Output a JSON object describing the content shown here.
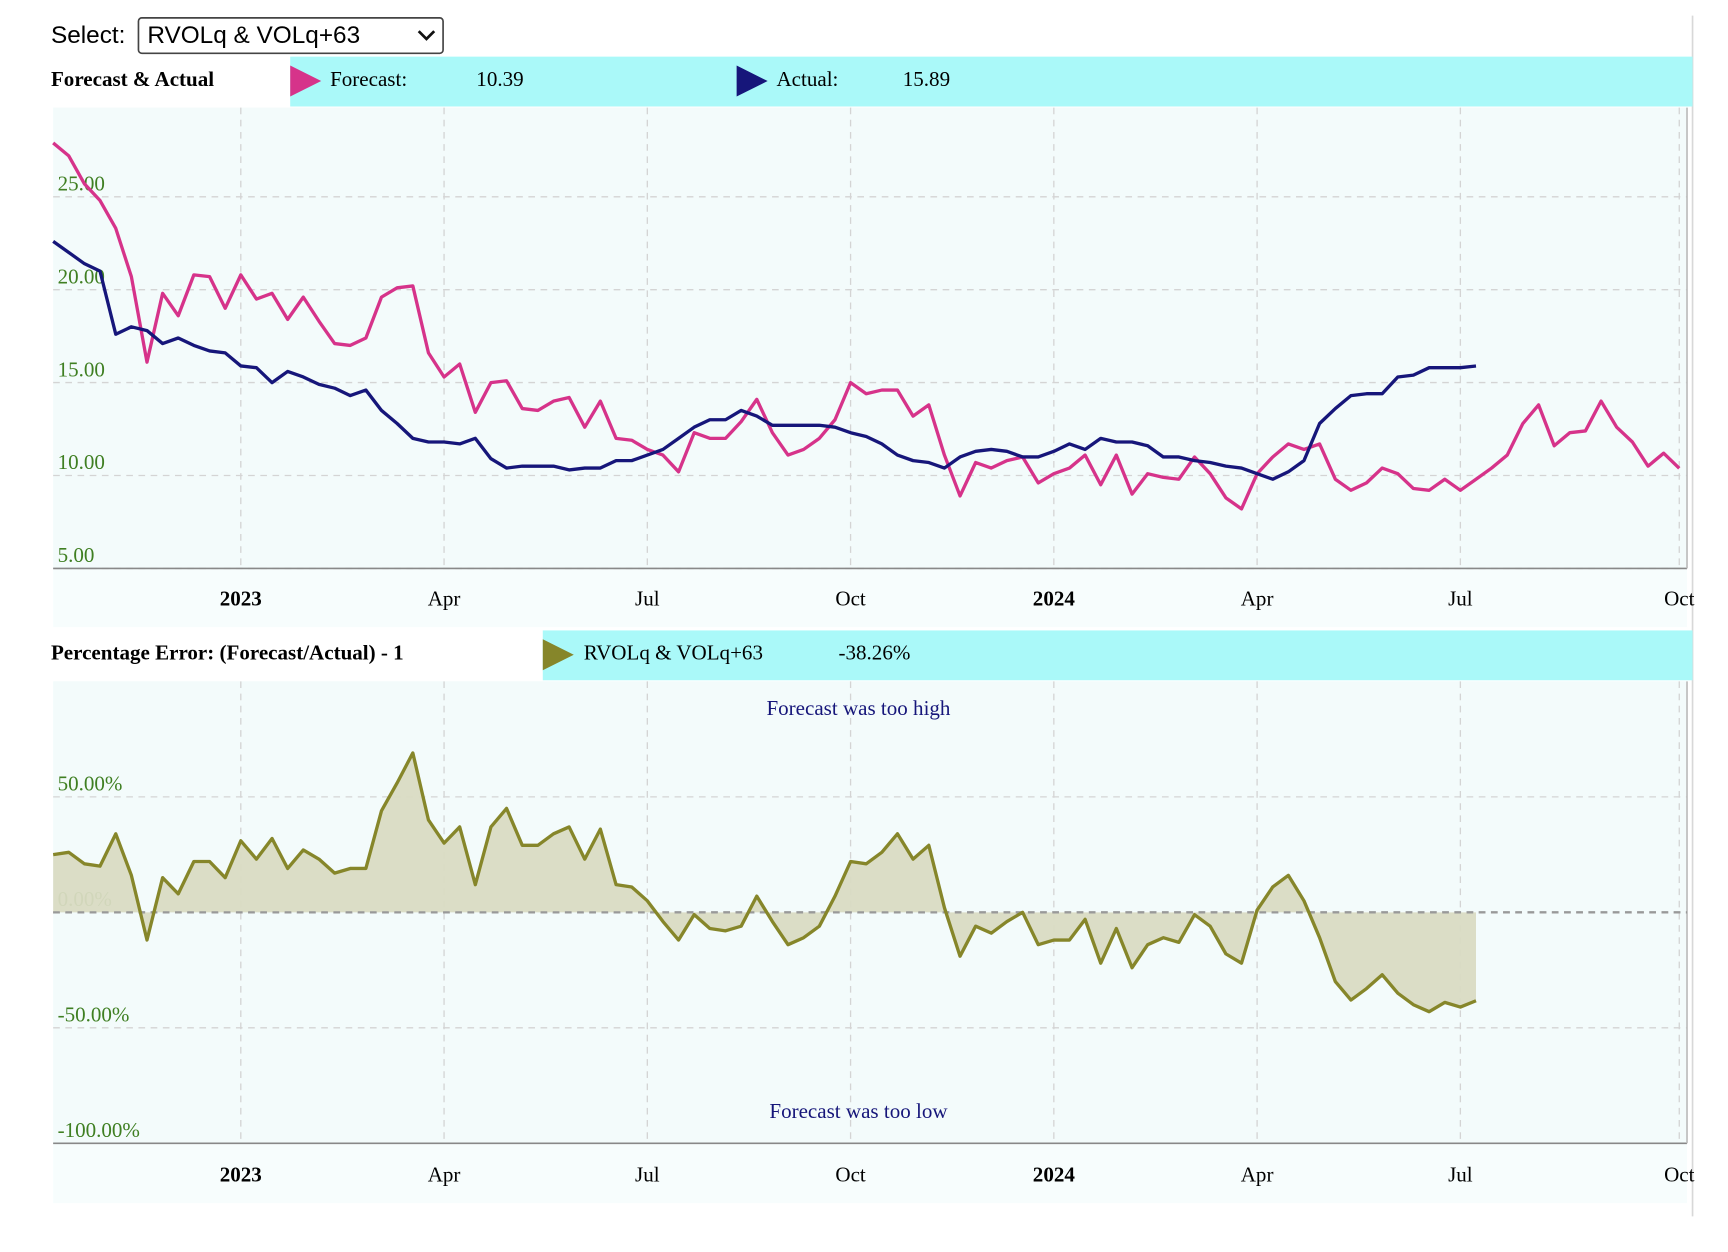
{
  "select": {
    "label": "Select:",
    "value": "RVOLq & VOLq+63"
  },
  "chart_data": [
    {
      "type": "line",
      "title": "Forecast & Actual",
      "grid": true,
      "categories": [
        null,
        null,
        null,
        null,
        null,
        null,
        null,
        null,
        null,
        null,
        null,
        null,
        "2023",
        null,
        null,
        null,
        null,
        null,
        null,
        null,
        null,
        null,
        null,
        null,
        null,
        "Apr",
        null,
        null,
        null,
        null,
        null,
        null,
        null,
        null,
        null,
        null,
        null,
        null,
        "Jul",
        null,
        null,
        null,
        null,
        null,
        null,
        null,
        null,
        null,
        null,
        null,
        null,
        "Oct",
        null,
        null,
        null,
        null,
        null,
        null,
        null,
        null,
        null,
        null,
        null,
        null,
        "2024",
        null,
        null,
        null,
        null,
        null,
        null,
        null,
        null,
        null,
        null,
        null,
        null,
        "Apr",
        null,
        null,
        null,
        null,
        null,
        null,
        null,
        null,
        null,
        null,
        null,
        null,
        "Jul",
        null,
        null,
        null,
        null,
        null,
        null,
        null,
        null,
        null,
        null,
        null,
        null,
        null,
        "Oct"
      ],
      "ylim": [
        5,
        29.8
      ],
      "yticks": [
        {
          "value": 5,
          "label": "5.00"
        },
        {
          "value": 10,
          "label": "10.00"
        },
        {
          "value": 15,
          "label": "15.00"
        },
        {
          "value": 20,
          "label": "20.00"
        },
        {
          "value": 25,
          "label": "25.00"
        }
      ],
      "series": [
        {
          "name": "Forecast:",
          "color": "#d6338a",
          "current": 10.39,
          "values": [
            27.9,
            27.2,
            25.7,
            24.8,
            23.3,
            20.7,
            16.1,
            19.8,
            18.6,
            20.8,
            20.7,
            19.0,
            20.8,
            19.5,
            19.8,
            18.4,
            19.6,
            18.3,
            17.1,
            17.0,
            17.4,
            19.6,
            20.1,
            20.2,
            16.6,
            15.3,
            16.0,
            13.4,
            15.0,
            15.1,
            13.6,
            13.5,
            14.0,
            14.2,
            12.6,
            14.0,
            12.0,
            11.9,
            11.4,
            11.1,
            10.2,
            12.3,
            12.0,
            12.0,
            12.9,
            14.1,
            12.3,
            11.1,
            11.4,
            12.0,
            13.0,
            15.0,
            14.4,
            14.6,
            14.6,
            13.2,
            13.8,
            11.1,
            8.9,
            10.7,
            10.4,
            10.8,
            11.0,
            9.6,
            10.1,
            10.4,
            11.1,
            9.5,
            11.1,
            9.0,
            10.1,
            9.9,
            9.8,
            11.0,
            10.1,
            8.8,
            8.2,
            10.1,
            11.0,
            11.7,
            11.4,
            11.7,
            9.8,
            9.2,
            9.6,
            10.4,
            10.1,
            9.3,
            9.2,
            9.8,
            9.2,
            9.8,
            10.4,
            11.1,
            12.8,
            13.8,
            11.6,
            12.3,
            12.4,
            14.0,
            12.6,
            11.8,
            10.5,
            11.2,
            10.39
          ]
        },
        {
          "name": "Actual:",
          "color": "#16167a",
          "current": 15.89,
          "values": [
            22.6,
            22.0,
            21.4,
            21.0,
            17.6,
            18.0,
            17.8,
            17.1,
            17.4,
            17.0,
            16.7,
            16.6,
            15.9,
            15.8,
            15.0,
            15.6,
            15.3,
            14.9,
            14.7,
            14.3,
            14.6,
            13.5,
            12.8,
            12.0,
            11.8,
            11.8,
            11.7,
            12.0,
            10.9,
            10.4,
            10.5,
            10.5,
            10.5,
            10.3,
            10.4,
            10.4,
            10.8,
            10.8,
            11.1,
            11.4,
            12.0,
            12.6,
            13.0,
            13.0,
            13.5,
            13.2,
            12.7,
            12.7,
            12.7,
            12.7,
            12.6,
            12.3,
            12.1,
            11.7,
            11.1,
            10.8,
            10.7,
            10.4,
            11.0,
            11.3,
            11.4,
            11.3,
            11.0,
            11.0,
            11.3,
            11.7,
            11.4,
            12.0,
            11.8,
            11.8,
            11.6,
            11.0,
            11.0,
            10.8,
            10.7,
            10.5,
            10.4,
            10.1,
            9.8,
            10.2,
            10.8,
            12.8,
            13.6,
            14.3,
            14.4,
            14.4,
            15.3,
            15.4,
            15.8,
            15.8,
            15.8,
            15.89,
            null,
            null,
            null,
            null,
            null,
            null,
            null,
            null,
            null,
            null,
            null,
            null,
            null
          ]
        }
      ]
    },
    {
      "type": "area",
      "title": "Percentage Error: (Forecast/Actual) - 1",
      "grid": true,
      "categories": [
        null,
        null,
        null,
        null,
        null,
        null,
        null,
        null,
        null,
        null,
        null,
        null,
        "2023",
        null,
        null,
        null,
        null,
        null,
        null,
        null,
        null,
        null,
        null,
        null,
        null,
        "Apr",
        null,
        null,
        null,
        null,
        null,
        null,
        null,
        null,
        null,
        null,
        null,
        null,
        "Jul",
        null,
        null,
        null,
        null,
        null,
        null,
        null,
        null,
        null,
        null,
        null,
        null,
        "Oct",
        null,
        null,
        null,
        null,
        null,
        null,
        null,
        null,
        null,
        null,
        null,
        null,
        "2024",
        null,
        null,
        null,
        null,
        null,
        null,
        null,
        null,
        null,
        null,
        null,
        null,
        "Apr",
        null,
        null,
        null,
        null,
        null,
        null,
        null,
        null,
        null,
        null,
        null,
        null,
        "Jul",
        null,
        null,
        null,
        null,
        null,
        null,
        null,
        null,
        null,
        null,
        null,
        null,
        null,
        "Oct"
      ],
      "ylim": [
        -100,
        100
      ],
      "yticks": [
        {
          "value": -100,
          "label": "-100.00%"
        },
        {
          "value": -50,
          "label": "-50.00%"
        },
        {
          "value": 0,
          "label": "0.00%"
        },
        {
          "value": 50,
          "label": "50.00%"
        }
      ],
      "annotations": [
        "Forecast was too high",
        "Forecast was too low"
      ],
      "series": [
        {
          "name": "RVOLq & VOLq+63",
          "color": "#86862a",
          "fill": "#d9dbc3",
          "current": -38.26,
          "current_label": "-38.26%",
          "values": [
            25,
            26,
            21,
            20,
            34,
            16,
            -12,
            15,
            8,
            22,
            22,
            15,
            31,
            23,
            32,
            19,
            27,
            23,
            17,
            19,
            19,
            44,
            56,
            69,
            40,
            30,
            37,
            12,
            37,
            45,
            29,
            29,
            34,
            37,
            23,
            36,
            12,
            11,
            5,
            -4,
            -12,
            -1,
            -7,
            -8,
            -6,
            7,
            -4,
            -14,
            -11,
            -6,
            7,
            22,
            21,
            26,
            34,
            23,
            29,
            2,
            -19,
            -6,
            -9,
            -4,
            0,
            -14,
            -12,
            -12,
            -3,
            -22,
            -7,
            -24,
            -14,
            -11,
            -13,
            -1,
            -6,
            -18,
            -22,
            1,
            11,
            16,
            5,
            -11,
            -30,
            -38,
            -33,
            -27,
            -35,
            -40,
            -43,
            -39,
            -41,
            -38.26,
            null,
            null,
            null,
            null,
            null,
            null,
            null,
            null,
            null,
            null,
            null,
            null,
            null
          ]
        }
      ]
    }
  ]
}
